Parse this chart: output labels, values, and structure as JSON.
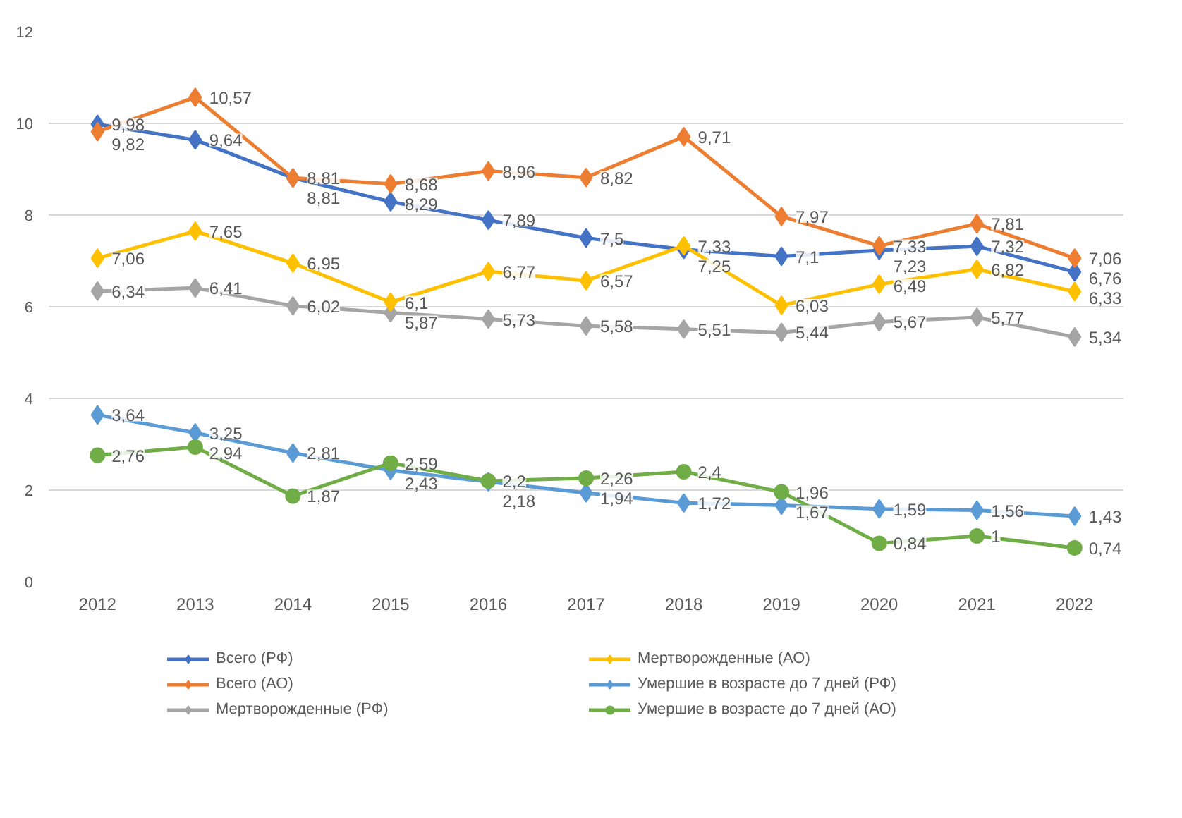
{
  "chart_data": {
    "type": "line",
    "categories": [
      "2012",
      "2013",
      "2014",
      "2015",
      "2016",
      "2017",
      "2018",
      "2019",
      "2020",
      "2021",
      "2022"
    ],
    "ylim": [
      0,
      12
    ],
    "yticks": [
      0,
      2,
      4,
      6,
      8,
      10,
      12
    ],
    "grid": "y",
    "legend": "bottom",
    "line_style": "solid",
    "series": [
      {
        "name": "Всего (РФ)",
        "color": "#4472c4",
        "marker": "diamond",
        "values": [
          9.98,
          9.64,
          8.81,
          8.29,
          7.89,
          7.5,
          7.25,
          7.1,
          7.23,
          7.32,
          6.76
        ],
        "value_labels": [
          "9,98",
          "9,64",
          "8,81",
          "8,29",
          "7,89",
          "7,5",
          "7,25",
          "7,1",
          "7,23",
          "7,32",
          "6,76"
        ]
      },
      {
        "name": "Всего (АО)",
        "color": "#ed7d31",
        "marker": "diamond",
        "values": [
          9.82,
          10.57,
          8.81,
          8.68,
          8.96,
          8.82,
          9.71,
          7.97,
          7.33,
          7.81,
          7.06
        ],
        "value_labels": [
          "9,82",
          "10,57",
          "8,81",
          "8,68",
          "8,96",
          "8,82",
          "9,71",
          "7,97",
          "7,33",
          "7,81",
          "7,06"
        ]
      },
      {
        "name": "Мертворожденные (РФ)",
        "color": "#a5a5a5",
        "marker": "diamond",
        "values": [
          6.34,
          6.41,
          6.02,
          5.87,
          5.73,
          5.58,
          5.51,
          5.44,
          5.67,
          5.77,
          5.34
        ],
        "value_labels": [
          "6,34",
          "6,41",
          "6,02",
          "5,87",
          "5,73",
          "5,58",
          "5,51",
          "5,44",
          "5,67",
          "5,77",
          "5,34"
        ]
      },
      {
        "name": "Мертворожденные (АО)",
        "color": "#ffc000",
        "marker": "diamond",
        "values": [
          7.06,
          7.65,
          6.95,
          6.1,
          6.77,
          6.57,
          7.33,
          6.03,
          6.49,
          6.82,
          6.33
        ],
        "value_labels": [
          "7,06",
          "7,65",
          "6,95",
          "6,1",
          "6,77",
          "6,57",
          "7,33",
          "6,03",
          "6,49",
          "6,82",
          "6,33"
        ]
      },
      {
        "name": "Умершие в возрасте до 7 дней (РФ)",
        "color": "#5b9bd5",
        "marker": "diamond",
        "values": [
          3.64,
          3.25,
          2.81,
          2.43,
          2.18,
          1.94,
          1.72,
          1.67,
          1.59,
          1.56,
          1.43
        ],
        "value_labels": [
          "3,64",
          "3,25",
          "2,81",
          "2,43",
          "2,18",
          "1,94",
          "1,72",
          "1,67",
          "1,59",
          "1,56",
          "1,43"
        ]
      },
      {
        "name": "Умершие в возрасте до 7 дней (АО)",
        "color": "#70ad47",
        "marker": "circle",
        "values": [
          2.76,
          2.94,
          1.87,
          2.59,
          2.2,
          2.26,
          2.4,
          1.96,
          0.84,
          1,
          0.74
        ],
        "value_labels": [
          "2,76",
          "2,94",
          "1,87",
          "2,59",
          "2,2",
          "2,26",
          "2,4",
          "1,96",
          "0,84",
          "1",
          "0,74"
        ]
      }
    ]
  }
}
